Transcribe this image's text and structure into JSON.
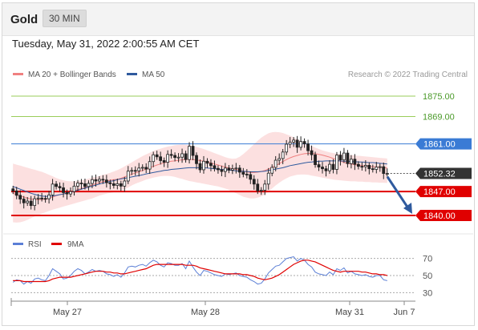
{
  "header": {
    "instrument": "Gold",
    "timeframe": "30 MIN",
    "datetime": "Tuesday, May 31, 2022 2:00:55 AM CET"
  },
  "legend": {
    "ma20_label": "MA 20 + Bollinger Bands",
    "ma20_color": "#f08080",
    "ma50_label": "MA 50",
    "ma50_color": "#2f5a9e",
    "credit": "Research © 2022 Trading Central"
  },
  "rsi_legend": {
    "rsi_label": "RSI",
    "rsi_color": "#5b7fd6",
    "ma9_label": "9MA",
    "ma9_color": "#e00000"
  },
  "chart_data": [
    {
      "type": "candlestick",
      "title": "",
      "ylim": [
        1836,
        1879
      ],
      "x_ticks": [
        "May 27",
        "May 28",
        "May 31",
        "Jun 7"
      ],
      "levels": [
        {
          "value": 1875.0,
          "label": "1875.00",
          "kind": "resistance",
          "color": "#9acd5a"
        },
        {
          "value": 1869.0,
          "label": "1869.00",
          "kind": "resistance",
          "color": "#9acd5a"
        },
        {
          "value": 1861.0,
          "label": "1861.00",
          "kind": "pivot",
          "color": "#3a7bd5"
        },
        {
          "value": 1852.32,
          "label": "1852.32",
          "kind": "last-price",
          "color": "#333333"
        },
        {
          "value": 1847.0,
          "label": "1847.00",
          "kind": "support",
          "color": "#e00000"
        },
        {
          "value": 1840.0,
          "label": "1840.00",
          "kind": "support",
          "color": "#e00000"
        }
      ],
      "forecast_arrow": {
        "from": 1852.3,
        "to": 1840.0,
        "direction": "down",
        "color": "#2f5a9e"
      },
      "series": {
        "close": [
          1847.2,
          1845.9,
          1844.8,
          1843.7,
          1844.2,
          1842.9,
          1844.9,
          1845.1,
          1845.0,
          1844.9,
          1846.0,
          1849.2,
          1848.5,
          1848.1,
          1846.7,
          1846.3,
          1847.0,
          1848.6,
          1849.5,
          1849.3,
          1848.5,
          1849.4,
          1850.5,
          1850.1,
          1850.6,
          1850.4,
          1849.6,
          1849.3,
          1848.8,
          1849.3,
          1848.6,
          1850.1,
          1853.0,
          1853.2,
          1853.1,
          1853.9,
          1854.1,
          1853.6,
          1855.8,
          1857.8,
          1857.2,
          1856.1,
          1855.6,
          1857.9,
          1857.6,
          1857.0,
          1857.1,
          1858.1,
          1856.4,
          1860.3,
          1857.6,
          1855.2,
          1853.4,
          1855.9,
          1855.3,
          1854.6,
          1853.8,
          1853.4,
          1852.9,
          1853.9,
          1853.3,
          1853.7,
          1853.9,
          1852.7,
          1852.1,
          1852.0,
          1850.6,
          1849.2,
          1847.2,
          1847.4,
          1849.2,
          1852.4,
          1854.1,
          1856.2,
          1856.7,
          1858.6,
          1860.9,
          1861.5,
          1862.1,
          1860.0,
          1861.7,
          1861.0,
          1859.0,
          1857.8,
          1854.9,
          1854.2,
          1853.7,
          1853.1,
          1855.0,
          1853.5,
          1857.7,
          1856.3,
          1858.3,
          1855.2,
          1856.5,
          1855.0,
          1854.4,
          1854.3,
          1854.7,
          1853.7,
          1853.5,
          1854.2,
          1854.3,
          1852.3,
          1852.3
        ],
        "ma20": [
          1846.5,
          1846.1,
          1845.7,
          1845.4,
          1845.1,
          1844.8,
          1844.7,
          1844.6,
          1844.7,
          1844.7,
          1845.0,
          1845.4,
          1845.8,
          1846.1,
          1846.3,
          1846.5,
          1846.8,
          1847.2,
          1847.6,
          1847.9,
          1848.2,
          1848.6,
          1848.9,
          1849.3,
          1849.6,
          1849.9,
          1850.1,
          1850.3,
          1850.5,
          1850.6,
          1850.9,
          1851.3,
          1851.7,
          1852.1,
          1852.5,
          1852.8,
          1853.2,
          1853.6,
          1854.0,
          1854.4,
          1854.8,
          1855.1,
          1855.4,
          1855.7,
          1855.9,
          1856.0,
          1856.2,
          1856.3,
          1856.4,
          1856.5,
          1856.4,
          1856.3,
          1856.1,
          1855.9,
          1855.7,
          1855.4,
          1855.1,
          1854.8,
          1854.5,
          1854.2,
          1853.9,
          1853.7,
          1853.5,
          1853.3,
          1853.0,
          1852.8,
          1852.6,
          1852.6,
          1852.7,
          1852.9,
          1853.2,
          1853.6,
          1854.1,
          1854.6,
          1855.2,
          1855.8,
          1856.4,
          1856.9,
          1857.3,
          1857.6,
          1857.9,
          1858.1,
          1858.2,
          1858.2,
          1858.1,
          1857.9,
          1857.7,
          1857.4,
          1857.1,
          1856.7,
          1856.3,
          1855.9,
          1855.6,
          1855.3,
          1855.1,
          1854.9,
          1854.7,
          1854.6,
          1854.5,
          1854.4,
          1854.3,
          1854.2,
          1854.1,
          1854.0,
          1853.9
        ],
        "bb_upper": [
          1855.2,
          1854.9,
          1854.6,
          1854.3,
          1854.0,
          1853.7,
          1853.4,
          1853.1,
          1852.8,
          1852.4,
          1851.9,
          1851.5,
          1851.0,
          1850.6,
          1850.3,
          1850.1,
          1850.0,
          1850.0,
          1850.1,
          1850.3,
          1850.5,
          1850.8,
          1851.1,
          1851.3,
          1851.6,
          1851.9,
          1852.2,
          1852.5,
          1852.9,
          1853.3,
          1853.8,
          1854.4,
          1855.0,
          1855.6,
          1856.2,
          1856.8,
          1857.4,
          1857.9,
          1858.4,
          1858.9,
          1859.3,
          1859.6,
          1859.9,
          1860.2,
          1860.4,
          1860.6,
          1860.7,
          1860.8,
          1860.7,
          1860.6,
          1860.4,
          1860.1,
          1859.8,
          1859.5,
          1859.1,
          1858.7,
          1858.3,
          1857.9,
          1857.5,
          1857.1,
          1856.8,
          1856.6,
          1856.7,
          1857.2,
          1858.0,
          1858.9,
          1859.9,
          1860.9,
          1861.9,
          1862.8,
          1863.5,
          1864.1,
          1864.4,
          1864.5,
          1864.4,
          1864.2,
          1863.8,
          1863.4,
          1862.9,
          1862.4,
          1861.9,
          1861.4,
          1860.9,
          1860.4,
          1859.9,
          1859.5,
          1859.1,
          1858.8,
          1858.5,
          1858.3,
          1858.1,
          1858.0,
          1857.9,
          1857.8,
          1857.7,
          1857.6,
          1857.5,
          1857.4,
          1857.3,
          1857.2,
          1857.1,
          1857.0,
          1856.9,
          1856.8,
          1856.7
        ],
        "bb_lower": [
          1838.0,
          1837.9,
          1838.0,
          1838.3,
          1838.7,
          1839.2,
          1839.7,
          1840.1,
          1840.5,
          1840.9,
          1841.3,
          1841.7,
          1842.0,
          1842.3,
          1842.6,
          1842.9,
          1843.2,
          1843.5,
          1843.8,
          1844.1,
          1844.4,
          1844.7,
          1845.0,
          1845.4,
          1845.8,
          1846.1,
          1846.4,
          1846.6,
          1846.8,
          1847.0,
          1847.3,
          1847.7,
          1848.2,
          1848.8,
          1849.3,
          1849.7,
          1850.1,
          1850.5,
          1850.8,
          1851.1,
          1851.3,
          1851.5,
          1851.6,
          1851.6,
          1851.5,
          1851.3,
          1851.0,
          1850.7,
          1850.4,
          1850.1,
          1849.9,
          1849.7,
          1849.5,
          1849.3,
          1849.1,
          1848.9,
          1848.7,
          1848.5,
          1848.2,
          1847.9,
          1847.5,
          1847.0,
          1846.5,
          1846.0,
          1845.5,
          1845.2,
          1845.0,
          1845.0,
          1845.2,
          1845.6,
          1846.2,
          1847.0,
          1847.9,
          1848.8,
          1849.6,
          1850.3,
          1850.9,
          1851.4,
          1851.7,
          1851.9,
          1852.0,
          1852.0,
          1851.9,
          1851.7,
          1851.5,
          1851.3,
          1851.1,
          1850.9,
          1850.7,
          1850.5,
          1850.4,
          1850.3,
          1850.2,
          1850.1,
          1850.0,
          1850.0,
          1849.9,
          1849.9,
          1849.8,
          1849.8,
          1849.7,
          1849.7,
          1849.6,
          1849.6,
          1849.5
        ],
        "ma50": [
          1848.5,
          1848.1,
          1847.7,
          1847.3,
          1846.9,
          1846.5,
          1846.2,
          1845.9,
          1845.7,
          1845.6,
          1845.6,
          1845.7,
          1845.9,
          1846.1,
          1846.3,
          1846.6,
          1846.8,
          1847.1,
          1847.4,
          1847.7,
          1848.0,
          1848.3,
          1848.6,
          1848.9,
          1849.2,
          1849.5,
          1849.7,
          1850.0,
          1850.2,
          1850.5,
          1850.7,
          1850.9,
          1851.1,
          1851.3,
          1851.5,
          1851.7,
          1851.9,
          1852.2,
          1852.4,
          1852.6,
          1852.8,
          1853.0,
          1853.2,
          1853.3,
          1853.5,
          1853.6,
          1853.7,
          1853.8,
          1853.9,
          1854.0,
          1854.0,
          1854.0,
          1854.0,
          1854.0,
          1853.9,
          1853.8,
          1853.7,
          1853.6,
          1853.5,
          1853.4,
          1853.3,
          1853.2,
          1853.1,
          1853.0,
          1853.0,
          1852.9,
          1852.8,
          1852.8,
          1852.8,
          1852.9,
          1853.0,
          1853.2,
          1853.4,
          1853.6,
          1853.8,
          1854.0,
          1854.3,
          1854.6,
          1854.8,
          1855.0,
          1855.2,
          1855.4,
          1855.6,
          1855.7,
          1855.8,
          1855.9,
          1855.9,
          1856.0,
          1856.0,
          1856.0,
          1856.0,
          1856.0,
          1855.9,
          1855.9,
          1855.8,
          1855.8,
          1855.7,
          1855.7,
          1855.6,
          1855.5,
          1855.5,
          1855.4,
          1855.3,
          1855.2,
          1855.1
        ]
      }
    },
    {
      "type": "line",
      "title": "RSI",
      "ylim": [
        20,
        80
      ],
      "y_ticks": [
        70,
        50,
        30
      ],
      "dotted_levels": [
        70,
        50,
        30
      ],
      "series": [
        {
          "name": "RSI",
          "values": [
            42,
            45,
            44,
            40,
            43,
            41,
            46,
            47,
            45,
            44,
            50,
            58,
            55,
            52,
            46,
            47,
            50,
            55,
            58,
            56,
            52,
            54,
            57,
            55,
            56,
            55,
            52,
            51,
            49,
            51,
            48,
            53,
            60,
            61,
            60,
            62,
            63,
            61,
            65,
            68,
            66,
            62,
            60,
            65,
            64,
            62,
            62,
            64,
            58,
            67,
            60,
            54,
            50,
            56,
            55,
            53,
            51,
            50,
            49,
            52,
            51,
            52,
            53,
            50,
            49,
            48,
            45,
            43,
            40,
            41,
            46,
            53,
            57,
            61,
            62,
            66,
            70,
            71,
            72,
            67,
            70,
            68,
            63,
            60,
            54,
            52,
            51,
            50,
            54,
            51,
            58,
            56,
            59,
            53,
            55,
            52,
            51,
            50,
            51,
            49,
            48,
            50,
            50,
            45,
            44
          ]
        },
        {
          "name": "9MA",
          "values": [
            44,
            44,
            44,
            43,
            43,
            43,
            43,
            43,
            43,
            43,
            44,
            46,
            47,
            48,
            48,
            48,
            48,
            49,
            50,
            51,
            52,
            53,
            54,
            55,
            55,
            55,
            54,
            54,
            53,
            53,
            52,
            52,
            53,
            54,
            55,
            56,
            57,
            58,
            60,
            62,
            63,
            63,
            63,
            63,
            63,
            63,
            63,
            63,
            62,
            62,
            62,
            61,
            59,
            58,
            57,
            56,
            55,
            54,
            53,
            52,
            52,
            52,
            52,
            52,
            51,
            51,
            50,
            49,
            47,
            46,
            45,
            46,
            47,
            49,
            51,
            54,
            57,
            60,
            63,
            65,
            67,
            68,
            68,
            67,
            66,
            64,
            62,
            60,
            58,
            56,
            55,
            54,
            55,
            55,
            55,
            55,
            55,
            54,
            54,
            53,
            52,
            52,
            51,
            51,
            50
          ]
        }
      ]
    }
  ]
}
